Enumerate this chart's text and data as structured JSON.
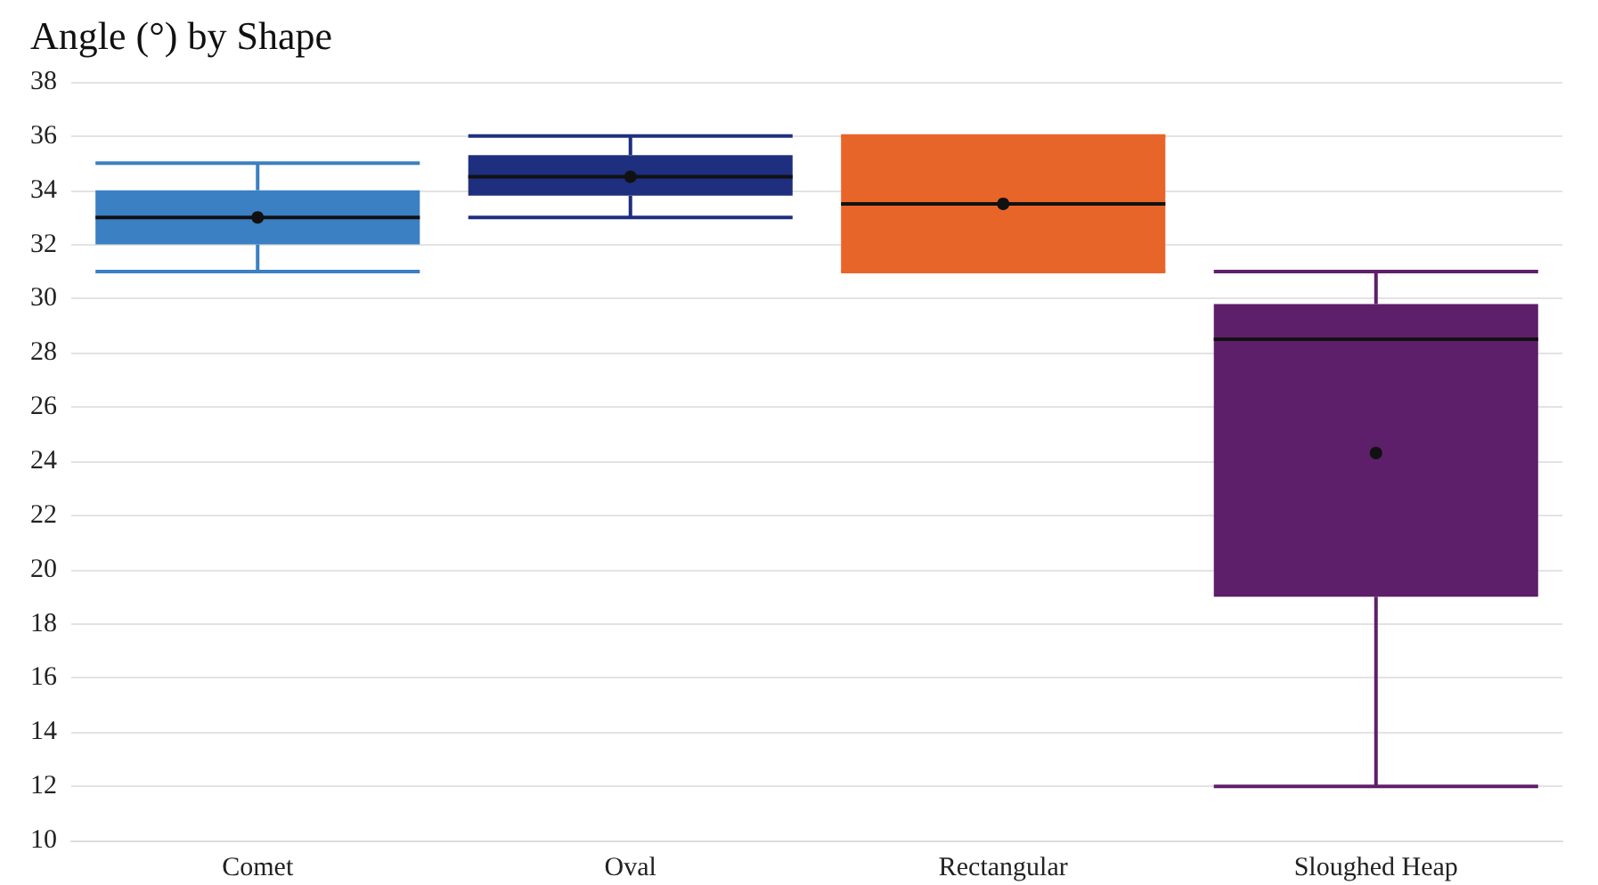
{
  "chart_data": {
    "type": "box",
    "title": "Angle (°) by Shape",
    "categories": [
      "Comet",
      "Oval",
      "Rectangular",
      "Sloughed Heap"
    ],
    "boxes": [
      {
        "low": 31,
        "q1": 32,
        "median": 33,
        "q3": 34,
        "high": 35,
        "mean": 33
      },
      {
        "low": 33,
        "q1": 33.8,
        "median": 34.5,
        "q3": 35.3,
        "high": 36,
        "mean": 34.5
      },
      {
        "low": 31,
        "q1": 31,
        "median": 33.5,
        "q3": 36,
        "high": 36,
        "mean": 33.5
      },
      {
        "low": 12,
        "q1": 19,
        "median": 28.5,
        "q3": 29.8,
        "high": 31,
        "mean": 24.3
      }
    ],
    "colors": [
      "#3a80c3",
      "#1f2f7f",
      "#e8652a",
      "#5e1f6a"
    ],
    "ylim": [
      10,
      38
    ],
    "yticks": [
      10,
      12,
      14,
      16,
      18,
      20,
      22,
      24,
      26,
      28,
      30,
      32,
      34,
      36,
      38
    ],
    "grid": "y"
  }
}
